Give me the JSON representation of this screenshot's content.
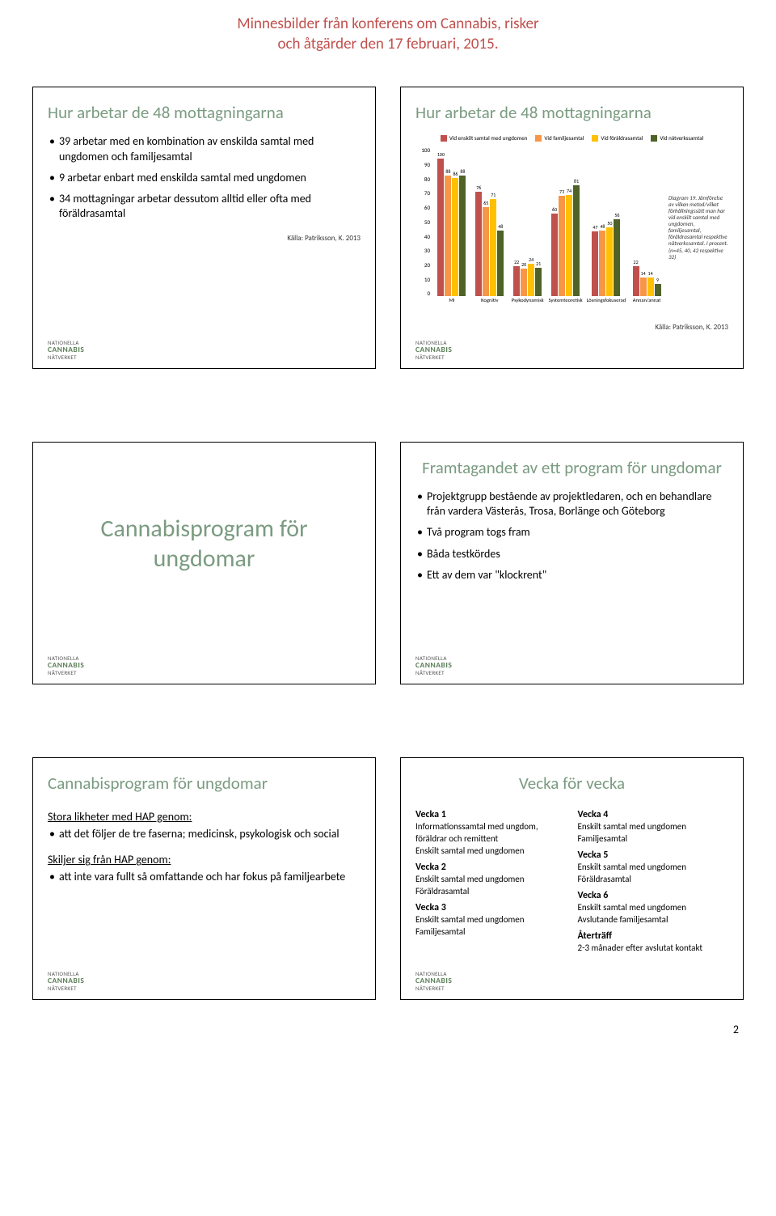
{
  "header": {
    "line1": "Minnesbilder från konferens om Cannabis, risker",
    "line2": "och åtgärder den 17 februari, 2015."
  },
  "logo": {
    "line1": "NATIONELLA",
    "line2": "CANNABIS",
    "line3": "NÄTVERKET"
  },
  "pagenum": "2",
  "slide1": {
    "title": "Hur arbetar de 48 mottagningarna",
    "b1": "39 arbetar med en kombination av enskilda samtal med ungdomen och familjesamtal",
    "b2": "9 arbetar enbart med enskilda samtal med ungdomen",
    "b3": "34 mottagningar arbetar dessutom alltid eller ofta med föräldrasamtal",
    "source": "Källa: Patriksson, K. 2013"
  },
  "slide2": {
    "title": "Hur arbetar de 48 mottagningarna",
    "legend": {
      "s1": "Vid enskilt samtal med ungdomen",
      "s2": "Vid familjesamtal",
      "s3": "Vid föräldrasamtal",
      "s4": "Vid nätverkssamtal"
    },
    "colors": {
      "c1": "#c0504d",
      "c2": "#f79646",
      "c3": "#ffc000",
      "c4": "#4f6228"
    },
    "ylim": [
      0,
      100
    ],
    "ytick_step": 10,
    "categories": [
      "MI",
      "Kognitiv",
      "Psykodynamisk",
      "Systemteoretisk",
      "Lösningsfokuserad",
      "Annan/annat"
    ],
    "series": [
      [
        100,
        88,
        86,
        88
      ],
      [
        76,
        65,
        71,
        48
      ],
      [
        22,
        20,
        24,
        21
      ],
      [
        60,
        73,
        74,
        81
      ],
      [
        47,
        48,
        50,
        56
      ],
      [
        22,
        14,
        14,
        9
      ]
    ],
    "note_title": "Diagram 19.",
    "note_body": "Jämförelse av vilken metod/vilket förhållningssätt man har vid enskilt samtal med ungdomen, familjesamtal, föräldrasamtal respektive nätverkssamtal. I procent. (n=45, 40, 42 respektive 32)",
    "source": "Källa: Patriksson, K. 2013"
  },
  "slide3": {
    "title": "Cannabisprogram för ungdomar"
  },
  "slide4": {
    "title": "Framtagandet av ett program för ungdomar",
    "b1": "Projektgrupp bestående av projektledaren, och en behandlare från vardera Västerås, Trosa, Borlänge och Göteborg",
    "b2": "Två program togs fram",
    "b3": "Båda testkördes",
    "b4": "Ett av dem var \"klockrent\""
  },
  "slide5": {
    "title": "Cannabisprogram för ungdomar",
    "sh1": "Stora likheter med HAP genom:",
    "b1": "att det följer de tre faserna; medicinsk, psykologisk och social",
    "sh2": "Skiljer sig från HAP genom:",
    "b2": "att inte vara fullt så omfattande och har fokus på familjearbete"
  },
  "slide6": {
    "title": "Vecka för vecka",
    "left": {
      "w1t": "Vecka 1",
      "w1a": "Informationssamtal med ungdom, föräldrar och remittent",
      "w1b": "Enskilt samtal med ungdomen",
      "w2t": "Vecka 2",
      "w2a": "Enskilt samtal med ungdomen",
      "w2b": "Föräldrasamtal",
      "w3t": "Vecka 3",
      "w3a": "Enskilt samtal med ungdomen",
      "w3b": "Familjesamtal"
    },
    "right": {
      "w4t": "Vecka 4",
      "w4a": "Enskilt samtal med ungdomen",
      "w4b": "Familjesamtal",
      "w5t": "Vecka 5",
      "w5a": "Enskilt samtal med ungdomen",
      "w5b": "Föräldrasamtal",
      "w6t": "Vecka 6",
      "w6a": "Enskilt samtal med ungdomen",
      "w6b": "Avslutande familjesamtal",
      "w7t": "Återträff",
      "w7a": "2-3 månader efter avslutat kontakt"
    }
  }
}
